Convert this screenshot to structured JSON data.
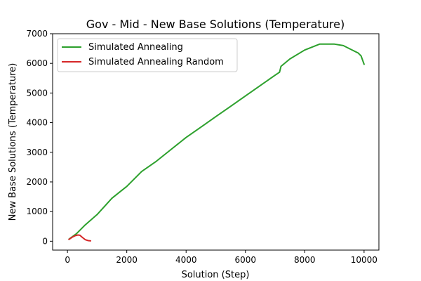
{
  "chart_data": {
    "type": "line",
    "title": "Gov - Mid - New Base Solutions (Temperature)",
    "xlabel": "Solution (Step)",
    "ylabel": "New Base Solutions (Temperature)",
    "xlim": [
      -500,
      10500
    ],
    "ylim": [
      -300,
      7000
    ],
    "xticks": [
      0,
      2000,
      4000,
      6000,
      8000,
      10000
    ],
    "yticks": [
      0,
      1000,
      2000,
      3000,
      4000,
      5000,
      6000,
      7000
    ],
    "grid": false,
    "legend_position": "top-left",
    "series": [
      {
        "name": "Simulated Annealing",
        "color": "#2ca02c",
        "x": [
          50,
          300,
          600,
          1000,
          1500,
          2000,
          2500,
          3000,
          3500,
          4000,
          4500,
          5000,
          5500,
          6000,
          6500,
          7000,
          7150,
          7200,
          7500,
          8000,
          8500,
          9000,
          9300,
          9500,
          9800,
          9900,
          10000
        ],
        "y": [
          70,
          250,
          550,
          900,
          1450,
          1850,
          2350,
          2700,
          3100,
          3500,
          3850,
          4200,
          4550,
          4900,
          5250,
          5600,
          5700,
          5900,
          6150,
          6450,
          6650,
          6650,
          6600,
          6500,
          6350,
          6250,
          5970
        ]
      },
      {
        "name": "Simulated Annealing Random",
        "color": "#d62728",
        "x": [
          50,
          150,
          250,
          350,
          420,
          500,
          600,
          700,
          780
        ],
        "y": [
          60,
          130,
          180,
          210,
          200,
          130,
          50,
          20,
          10
        ]
      }
    ]
  }
}
